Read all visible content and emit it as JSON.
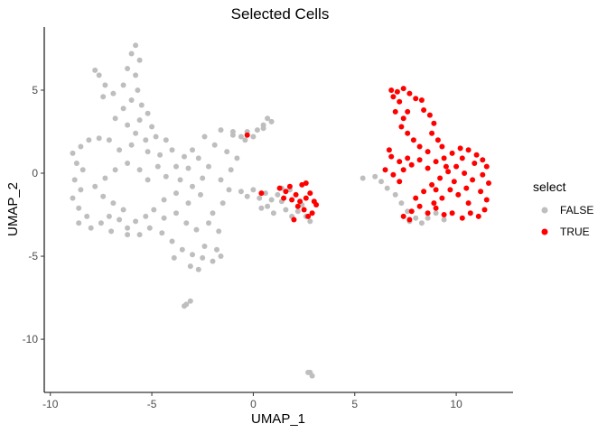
{
  "chart_data": {
    "type": "scatter",
    "title": "Selected Cells",
    "xlabel": "UMAP_1",
    "ylabel": "UMAP_2",
    "xlim": [
      -10.3,
      12.8
    ],
    "ylim": [
      -13.2,
      8.8
    ],
    "x_ticks": [
      -10,
      -5,
      0,
      5,
      10
    ],
    "x_tick_labels": [
      "-10",
      "-5",
      "0",
      "5",
      "10"
    ],
    "y_ticks": [
      -10,
      -5,
      0,
      5
    ],
    "y_tick_labels": [
      "-10",
      "-5",
      "0",
      "5"
    ],
    "grid": false,
    "legend": {
      "title": "select",
      "position": "right",
      "entries": [
        {
          "label": "FALSE",
          "color": "#bebebe"
        },
        {
          "label": "TRUE",
          "color": "#ff0000"
        }
      ]
    },
    "series": [
      {
        "name": "FALSE",
        "color": "#bebebe",
        "points": [
          [
            -5.8,
            7.7
          ],
          [
            -6.0,
            7.2
          ],
          [
            -5.6,
            6.8
          ],
          [
            -6.2,
            6.3
          ],
          [
            -5.8,
            5.9
          ],
          [
            -6.4,
            5.3
          ],
          [
            -5.7,
            5.0
          ],
          [
            -6.9,
            4.8
          ],
          [
            -7.3,
            5.3
          ],
          [
            -7.6,
            5.9
          ],
          [
            -7.8,
            6.2
          ],
          [
            -7.4,
            4.6
          ],
          [
            -6.0,
            4.4
          ],
          [
            -5.5,
            4.1
          ],
          [
            -6.4,
            3.9
          ],
          [
            -6.8,
            3.3
          ],
          [
            -6.2,
            2.9
          ],
          [
            -5.6,
            3.2
          ],
          [
            -5.2,
            3.6
          ],
          [
            -5.0,
            2.8
          ],
          [
            -4.8,
            2.2
          ],
          [
            -5.3,
            2.0
          ],
          [
            -5.8,
            2.4
          ],
          [
            -4.3,
            2.0
          ],
          [
            -4.0,
            1.4
          ],
          [
            -4.6,
            1.1
          ],
          [
            -5.2,
            1.3
          ],
          [
            -6.0,
            1.7
          ],
          [
            -6.6,
            1.4
          ],
          [
            -7.1,
            2.0
          ],
          [
            -7.6,
            2.1
          ],
          [
            -8.1,
            2.0
          ],
          [
            -8.5,
            1.6
          ],
          [
            -8.9,
            1.2
          ],
          [
            -8.7,
            0.6
          ],
          [
            -8.4,
            0.2
          ],
          [
            -8.8,
            -0.4
          ],
          [
            -8.5,
            -1.0
          ],
          [
            -8.9,
            -1.5
          ],
          [
            -8.6,
            -2.1
          ],
          [
            -8.2,
            -2.6
          ],
          [
            -8.6,
            -3.0
          ],
          [
            -8.0,
            -3.3
          ],
          [
            -7.5,
            -3.0
          ],
          [
            -7.1,
            -2.6
          ],
          [
            -6.6,
            -2.8
          ],
          [
            -6.2,
            -3.3
          ],
          [
            -5.8,
            -2.9
          ],
          [
            -5.3,
            -2.6
          ],
          [
            -6.4,
            -2.2
          ],
          [
            -6.9,
            -1.8
          ],
          [
            -7.4,
            -1.4
          ],
          [
            -7.8,
            -0.8
          ],
          [
            -7.3,
            -0.3
          ],
          [
            -6.8,
            0.2
          ],
          [
            -6.2,
            0.6
          ],
          [
            -5.6,
            0.2
          ],
          [
            -5.2,
            -0.4
          ],
          [
            -4.7,
            0.4
          ],
          [
            -4.3,
            -0.2
          ],
          [
            -3.8,
            0.4
          ],
          [
            -3.4,
            1.0
          ],
          [
            -3.0,
            1.4
          ],
          [
            -2.7,
            0.9
          ],
          [
            -3.2,
            0.3
          ],
          [
            -3.6,
            -0.4
          ],
          [
            -3.0,
            -0.8
          ],
          [
            -2.5,
            -0.3
          ],
          [
            -2.2,
            0.4
          ],
          [
            -2.6,
            -1.3
          ],
          [
            -3.2,
            -1.8
          ],
          [
            -3.8,
            -1.2
          ],
          [
            -4.4,
            -1.6
          ],
          [
            -4.9,
            -2.2
          ],
          [
            -4.4,
            -2.7
          ],
          [
            -3.8,
            -2.4
          ],
          [
            -3.3,
            -3.0
          ],
          [
            -2.8,
            -3.4
          ],
          [
            -2.2,
            -3.0
          ],
          [
            -1.7,
            -3.5
          ],
          [
            -2.0,
            -2.4
          ],
          [
            -1.5,
            -1.8
          ],
          [
            -1.2,
            -1.0
          ],
          [
            -1.6,
            -0.4
          ],
          [
            -1.1,
            0.2
          ],
          [
            -0.8,
            0.9
          ],
          [
            -1.3,
            1.3
          ],
          [
            -1.9,
            1.7
          ],
          [
            -2.4,
            2.2
          ],
          [
            -1.6,
            2.6
          ],
          [
            -1.0,
            2.3
          ],
          [
            -4.5,
            -3.6
          ],
          [
            -4.0,
            -4.1
          ],
          [
            -3.5,
            -4.6
          ],
          [
            -3.0,
            -4.9
          ],
          [
            -2.5,
            -5.1
          ],
          [
            -2.0,
            -5.3
          ],
          [
            -2.4,
            -4.4
          ],
          [
            -1.8,
            -4.6
          ],
          [
            -1.6,
            -5.0
          ],
          [
            -3.1,
            -5.6
          ],
          [
            -2.7,
            -5.8
          ],
          [
            -3.9,
            -5.1
          ],
          [
            -5.6,
            -3.7
          ],
          [
            -5.1,
            -3.3
          ],
          [
            -6.2,
            -3.7
          ],
          [
            -7.0,
            -3.5
          ],
          [
            -3.3,
            -7.9
          ],
          [
            -3.1,
            -7.7
          ],
          [
            -3.4,
            -8.0
          ],
          [
            2.8,
            -12.0
          ],
          [
            2.9,
            -12.2
          ],
          [
            2.7,
            -12.0
          ],
          [
            -0.3,
            2.5
          ],
          [
            -0.6,
            2.2
          ],
          [
            -1.0,
            2.5
          ],
          [
            0.0,
            2.2
          ],
          [
            0.2,
            2.6
          ],
          [
            0.5,
            2.7
          ],
          [
            0.7,
            3.3
          ],
          [
            0.5,
            2.9
          ],
          [
            0.9,
            3.1
          ],
          [
            -0.4,
            2.0
          ],
          [
            -0.6,
            -1.1
          ],
          [
            -0.3,
            -1.4
          ],
          [
            0.0,
            -1.0
          ],
          [
            0.3,
            -1.5
          ],
          [
            0.6,
            -1.2
          ],
          [
            0.9,
            -1.6
          ],
          [
            1.2,
            -1.3
          ],
          [
            1.4,
            -1.7
          ],
          [
            0.7,
            -2.0
          ],
          [
            1.0,
            -2.4
          ],
          [
            0.4,
            -2.1
          ],
          [
            1.6,
            -2.2
          ],
          [
            1.9,
            -2.6
          ],
          [
            2.2,
            -2.3
          ],
          [
            2.6,
            -2.6
          ],
          [
            2.4,
            -1.9
          ],
          [
            2.8,
            -2.9
          ],
          [
            1.4,
            -0.9
          ],
          [
            1.8,
            -1.0
          ],
          [
            6.0,
            -0.2
          ],
          [
            6.3,
            -0.5
          ],
          [
            6.6,
            -0.9
          ],
          [
            7.0,
            -1.3
          ],
          [
            7.3,
            -1.8
          ],
          [
            7.6,
            -2.3
          ],
          [
            8.0,
            -2.7
          ],
          [
            7.7,
            -2.9
          ],
          [
            8.3,
            -3.0
          ],
          [
            8.6,
            -2.7
          ],
          [
            9.0,
            -2.4
          ],
          [
            5.4,
            -0.3
          ],
          [
            9.4,
            -2.8
          ]
        ]
      },
      {
        "name": "TRUE",
        "color": "#ff0000",
        "points": [
          [
            -0.3,
            2.3
          ],
          [
            0.4,
            -1.2
          ],
          [
            1.3,
            -0.9
          ],
          [
            1.6,
            -1.1
          ],
          [
            1.8,
            -0.8
          ],
          [
            2.1,
            -1.3
          ],
          [
            2.3,
            -1.7
          ],
          [
            2.6,
            -1.5
          ],
          [
            2.8,
            -1.2
          ],
          [
            3.0,
            -1.7
          ],
          [
            2.5,
            -2.2
          ],
          [
            2.2,
            -2.0
          ],
          [
            1.9,
            -1.6
          ],
          [
            2.7,
            -2.6
          ],
          [
            2.9,
            -2.4
          ],
          [
            3.1,
            -1.9
          ],
          [
            1.5,
            -1.5
          ],
          [
            2.0,
            -2.8
          ],
          [
            2.4,
            -0.7
          ],
          [
            2.6,
            -0.6
          ],
          [
            6.8,
            5.0
          ],
          [
            7.1,
            4.9
          ],
          [
            7.4,
            5.1
          ],
          [
            7.7,
            4.8
          ],
          [
            8.0,
            4.5
          ],
          [
            8.3,
            4.4
          ],
          [
            7.2,
            4.3
          ],
          [
            7.0,
            3.7
          ],
          [
            7.4,
            3.3
          ],
          [
            7.3,
            2.8
          ],
          [
            7.6,
            2.4
          ],
          [
            7.9,
            2.0
          ],
          [
            8.2,
            1.6
          ],
          [
            8.6,
            1.3
          ],
          [
            8.4,
            3.8
          ],
          [
            8.7,
            3.5
          ],
          [
            8.9,
            3.0
          ],
          [
            8.8,
            2.4
          ],
          [
            9.1,
            2.0
          ],
          [
            9.3,
            1.6
          ],
          [
            6.8,
            1.0
          ],
          [
            7.2,
            0.7
          ],
          [
            6.5,
            0.2
          ],
          [
            6.9,
            -0.1
          ],
          [
            7.4,
            0.2
          ],
          [
            7.8,
            0.5
          ],
          [
            8.2,
            0.8
          ],
          [
            8.6,
            0.3
          ],
          [
            9.0,
            0.7
          ],
          [
            9.4,
            0.9
          ],
          [
            9.8,
            1.2
          ],
          [
            10.2,
            1.5
          ],
          [
            10.6,
            1.4
          ],
          [
            11.0,
            1.1
          ],
          [
            11.3,
            0.8
          ],
          [
            11.5,
            0.4
          ],
          [
            11.3,
            -0.1
          ],
          [
            11.6,
            -0.6
          ],
          [
            11.2,
            -1.1
          ],
          [
            11.5,
            -1.6
          ],
          [
            11.4,
            -2.2
          ],
          [
            11.1,
            -2.6
          ],
          [
            10.7,
            -2.4
          ],
          [
            10.3,
            -2.7
          ],
          [
            9.8,
            -2.4
          ],
          [
            9.4,
            -2.5
          ],
          [
            9.0,
            -2.1
          ],
          [
            8.6,
            -2.4
          ],
          [
            8.2,
            -2.0
          ],
          [
            7.8,
            -2.3
          ],
          [
            7.4,
            -2.6
          ],
          [
            8.0,
            -1.5
          ],
          [
            8.4,
            -1.1
          ],
          [
            8.8,
            -0.7
          ],
          [
            9.2,
            -0.3
          ],
          [
            9.6,
            0.1
          ],
          [
            10.0,
            0.4
          ],
          [
            10.4,
            0.0
          ],
          [
            10.8,
            -0.4
          ],
          [
            10.5,
            -0.9
          ],
          [
            10.1,
            -1.3
          ],
          [
            9.7,
            -1.0
          ],
          [
            9.3,
            -1.5
          ],
          [
            8.9,
            -1.8
          ],
          [
            10.6,
            -1.8
          ],
          [
            10.9,
            0.6
          ],
          [
            9.9,
            -0.5
          ],
          [
            10.3,
            0.9
          ],
          [
            9.5,
            0.4
          ],
          [
            9.0,
            -1.0
          ],
          [
            7.7,
            -2.8
          ],
          [
            7.6,
            0.9
          ],
          [
            6.7,
            1.4
          ],
          [
            6.9,
            4.6
          ],
          [
            7.6,
            3.7
          ],
          [
            7.2,
            -0.5
          ]
        ]
      }
    ]
  }
}
